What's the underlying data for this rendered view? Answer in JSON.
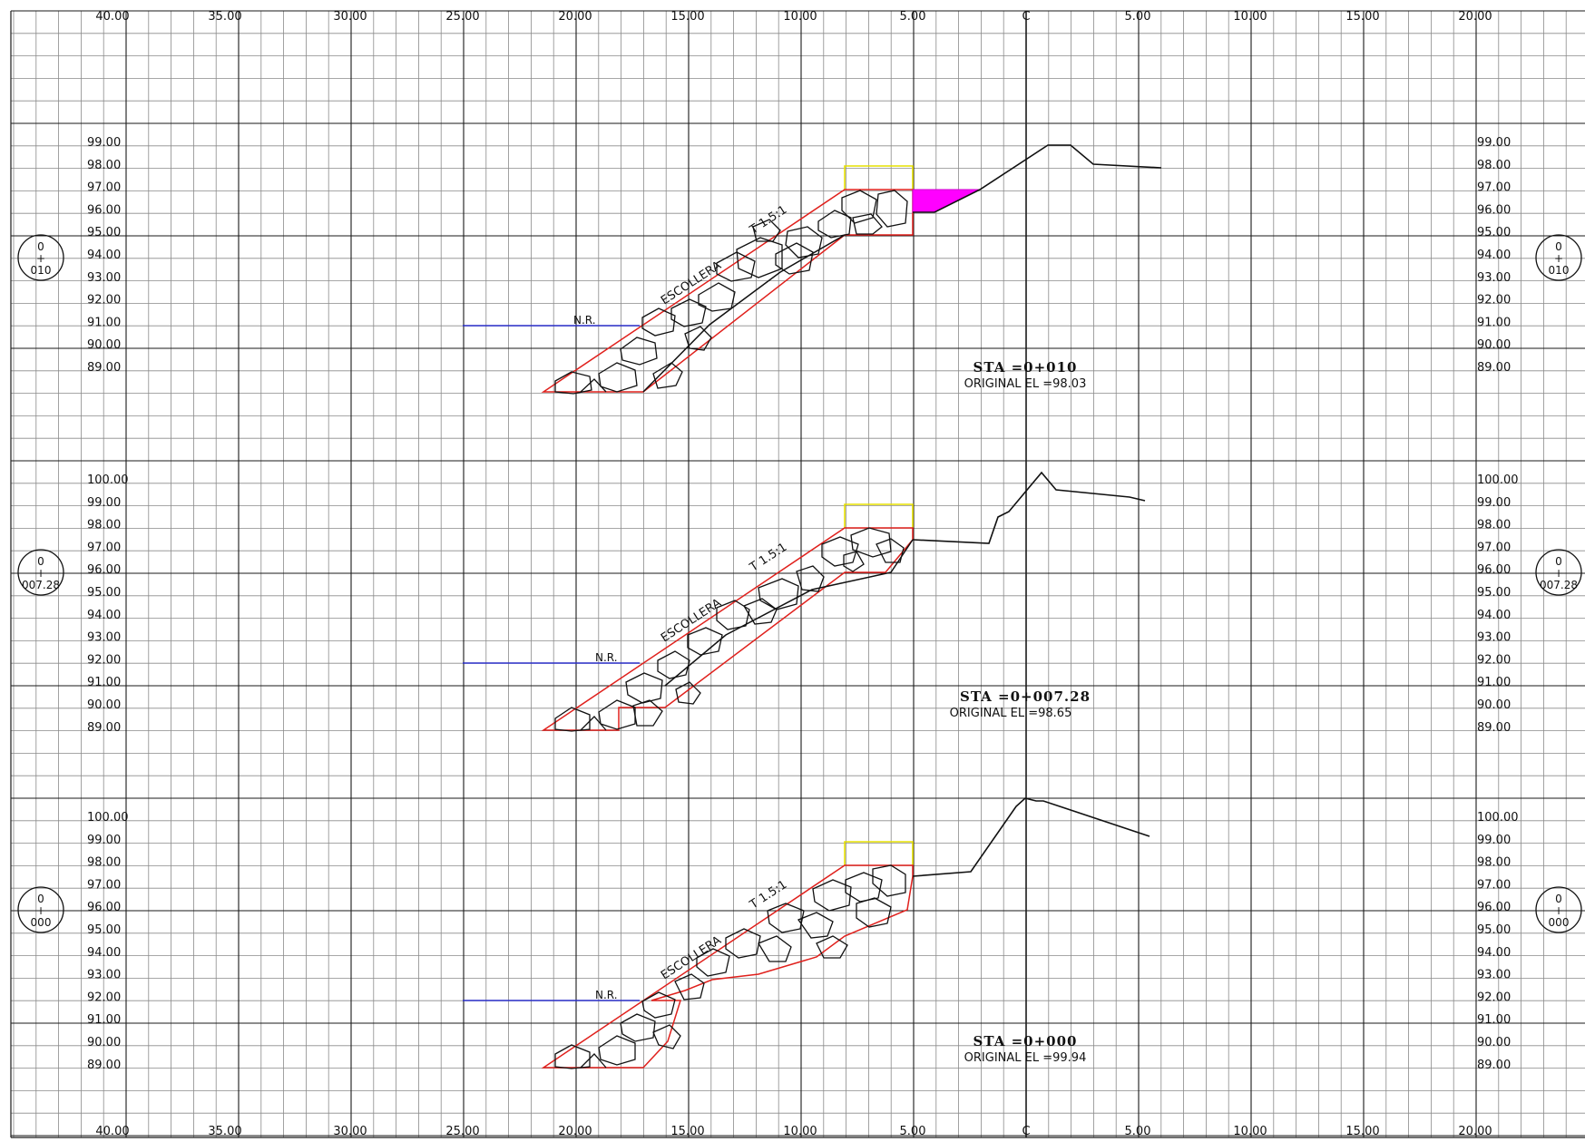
{
  "colors": {
    "grid": "#8a8a8a",
    "major_grid": "#1a1a1a",
    "structure": "#e0201c",
    "water": "#2b2fc9",
    "crown": "#e6e000",
    "fill_area": "#ff00ff",
    "ground": "#111111"
  },
  "axis": {
    "top_labels": [
      "40.00",
      "35.00",
      "30.00",
      "25.00",
      "20.00",
      "15.00",
      "10.00",
      "5.00",
      "C",
      "5.00",
      "10.00",
      "15.00",
      "20.00"
    ],
    "bottom_labels": [
      "40.00",
      "35.00",
      "30.00",
      "25.00",
      "20.00",
      "15.00",
      "10.00",
      "5.00",
      "C",
      "5.00",
      "10.00",
      "15.00",
      "20.00"
    ],
    "offsets": [
      -40,
      -35,
      -30,
      -25,
      -20,
      -15,
      -10,
      -5,
      0,
      5,
      10,
      15,
      20
    ]
  },
  "sections": [
    {
      "id": "sec-010",
      "marker_top": "0",
      "marker_mid": "+",
      "marker_bot": "010",
      "station_label": "STA =0+010",
      "original_el": "ORIGINAL EL =98.03",
      "slope_label": "T 1.5:1",
      "material_label": "ESCOLLERA",
      "water_label": "N.R.",
      "elevations": [
        "99.00",
        "98.00",
        "97.00",
        "96.00",
        "95.00",
        "94.00",
        "93.00",
        "92.00",
        "91.00",
        "90.00",
        "89.00"
      ],
      "elev_values": [
        99,
        98,
        97,
        96,
        95,
        94,
        93,
        92,
        91,
        90,
        89
      ]
    },
    {
      "id": "sec-00728",
      "marker_top": "0",
      "marker_mid": "+",
      "marker_bot": "007.28",
      "station_label": "STA =0+007.28",
      "original_el": "ORIGINAL EL =98.65",
      "slope_label": "T 1.5:1",
      "material_label": "ESCOLLERA",
      "water_label": "N.R.",
      "elevations": [
        "100.00",
        "99.00",
        "98.00",
        "97.00",
        "96.00",
        "95.00",
        "94.00",
        "93.00",
        "92.00",
        "91.00",
        "90.00",
        "89.00"
      ],
      "elev_values": [
        100,
        99,
        98,
        97,
        96,
        95,
        94,
        93,
        92,
        91,
        90,
        89
      ]
    },
    {
      "id": "sec-000",
      "marker_top": "0",
      "marker_mid": "+",
      "marker_bot": "000",
      "station_label": "STA =0+000",
      "original_el": "ORIGINAL EL =99.94",
      "slope_label": "T 1.5:1",
      "material_label": "ESCOLLERA",
      "water_label": "N.R.",
      "elevations": [
        "100.00",
        "99.00",
        "98.00",
        "97.00",
        "96.00",
        "95.00",
        "94.00",
        "93.00",
        "92.00",
        "91.00",
        "90.00",
        "89.00"
      ],
      "elev_values": [
        100,
        99,
        98,
        97,
        96,
        95,
        94,
        93,
        92,
        91,
        90,
        89
      ]
    }
  ]
}
